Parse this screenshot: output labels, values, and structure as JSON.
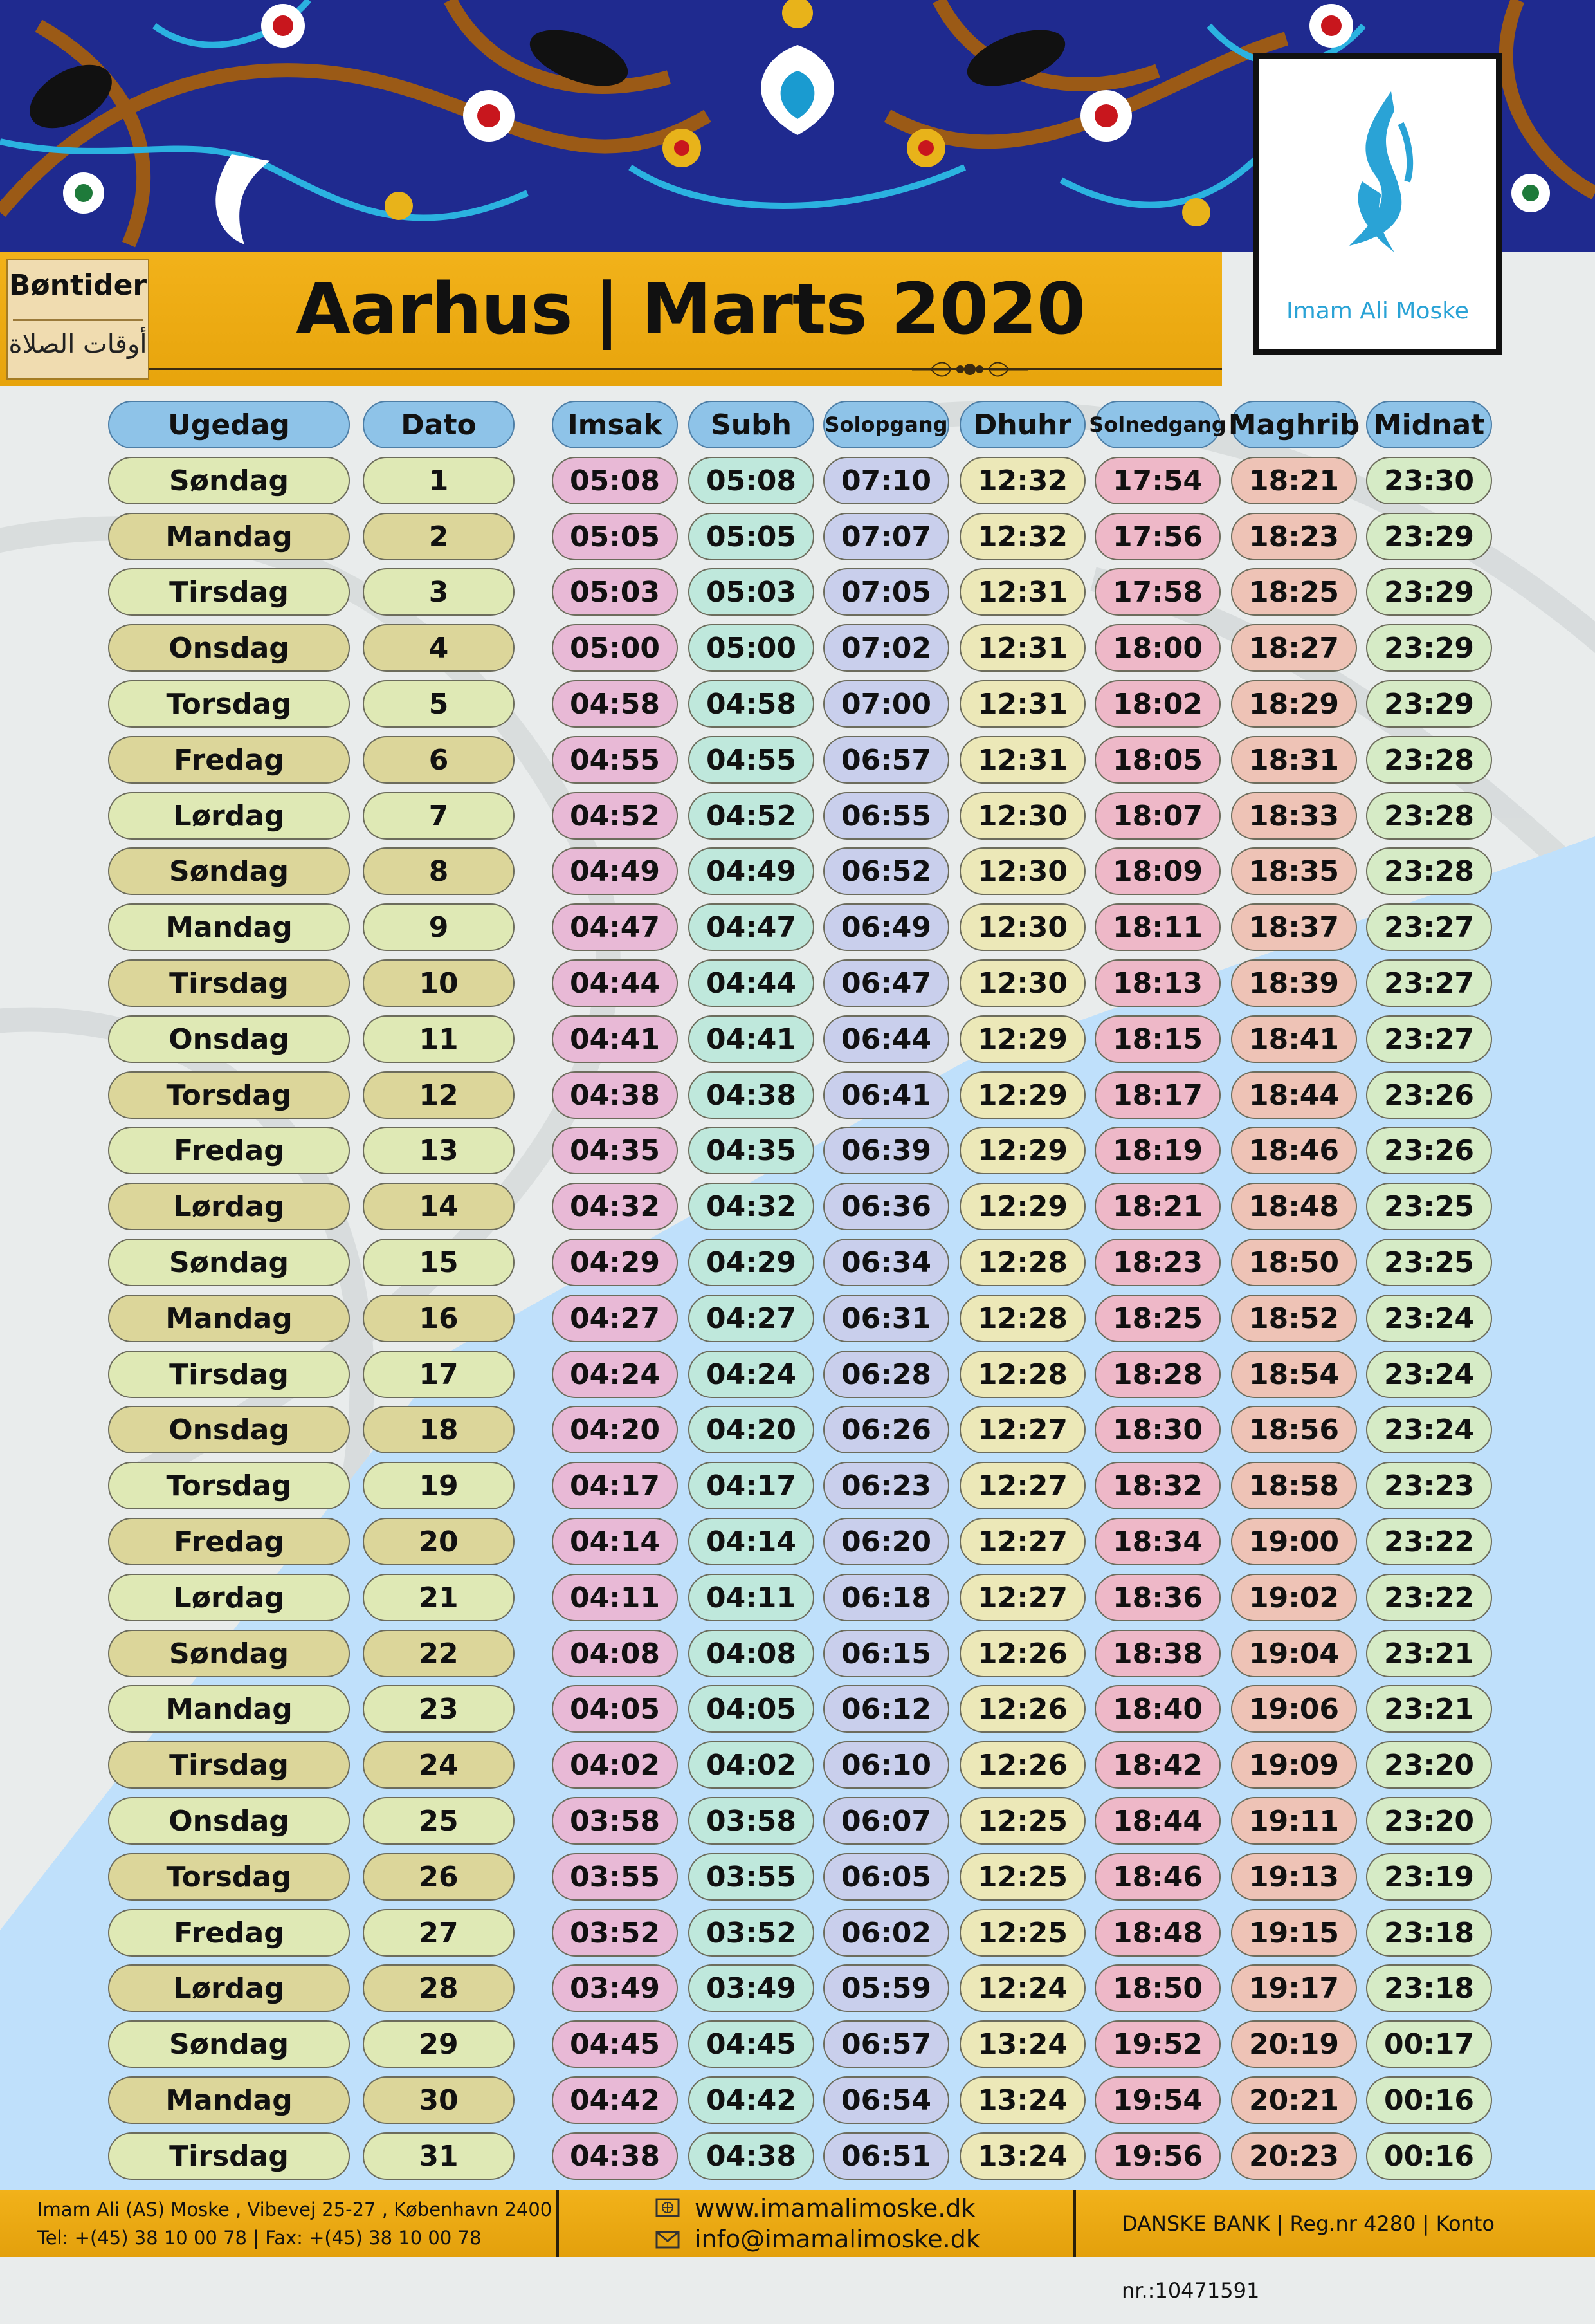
{
  "header": {
    "badge_top": "Bøntider",
    "badge_bottom": "أوقات الصلاة",
    "city": "Aarhus",
    "separator": "|",
    "month": "Marts 2020",
    "logo_name": "Imam Ali Moske"
  },
  "colors": {
    "dark_blue": "#1f2a8f",
    "gold": "#f2b21a",
    "header_pill": "#8ec3e8",
    "weekday_light": "#dfe9b5",
    "weekday_dark": "#dcd69a",
    "imsak": "#e8b9d6",
    "subh": "#bfe8dc",
    "solopgang": "#c9cfec",
    "dhuhr": "#ece8b8",
    "solnedgang": "#eeb8c8",
    "maghrib": "#eec3b6",
    "midnat": "#d6ebc6",
    "light_blue_wedge": "#bfe0fb"
  },
  "columns": [
    "Ugedag",
    "Dato",
    "Imsak",
    "Subh",
    "Solopgang",
    "Dhuhr",
    "Solnedgang",
    "Maghrib",
    "Midnat"
  ],
  "rows": [
    {
      "day": "Søndag",
      "date": "1",
      "times": [
        "05:08",
        "05:08",
        "07:10",
        "12:32",
        "17:54",
        "18:21",
        "23:30"
      ]
    },
    {
      "day": "Mandag",
      "date": "2",
      "times": [
        "05:05",
        "05:05",
        "07:07",
        "12:32",
        "17:56",
        "18:23",
        "23:29"
      ]
    },
    {
      "day": "Tirsdag",
      "date": "3",
      "times": [
        "05:03",
        "05:03",
        "07:05",
        "12:31",
        "17:58",
        "18:25",
        "23:29"
      ]
    },
    {
      "day": "Onsdag",
      "date": "4",
      "times": [
        "05:00",
        "05:00",
        "07:02",
        "12:31",
        "18:00",
        "18:27",
        "23:29"
      ]
    },
    {
      "day": "Torsdag",
      "date": "5",
      "times": [
        "04:58",
        "04:58",
        "07:00",
        "12:31",
        "18:02",
        "18:29",
        "23:29"
      ]
    },
    {
      "day": "Fredag",
      "date": "6",
      "times": [
        "04:55",
        "04:55",
        "06:57",
        "12:31",
        "18:05",
        "18:31",
        "23:28"
      ]
    },
    {
      "day": "Lørdag",
      "date": "7",
      "times": [
        "04:52",
        "04:52",
        "06:55",
        "12:30",
        "18:07",
        "18:33",
        "23:28"
      ]
    },
    {
      "day": "Søndag",
      "date": "8",
      "times": [
        "04:49",
        "04:49",
        "06:52",
        "12:30",
        "18:09",
        "18:35",
        "23:28"
      ]
    },
    {
      "day": "Mandag",
      "date": "9",
      "times": [
        "04:47",
        "04:47",
        "06:49",
        "12:30",
        "18:11",
        "18:37",
        "23:27"
      ]
    },
    {
      "day": "Tirsdag",
      "date": "10",
      "times": [
        "04:44",
        "04:44",
        "06:47",
        "12:30",
        "18:13",
        "18:39",
        "23:27"
      ]
    },
    {
      "day": "Onsdag",
      "date": "11",
      "times": [
        "04:41",
        "04:41",
        "06:44",
        "12:29",
        "18:15",
        "18:41",
        "23:27"
      ]
    },
    {
      "day": "Torsdag",
      "date": "12",
      "times": [
        "04:38",
        "04:38",
        "06:41",
        "12:29",
        "18:17",
        "18:44",
        "23:26"
      ]
    },
    {
      "day": "Fredag",
      "date": "13",
      "times": [
        "04:35",
        "04:35",
        "06:39",
        "12:29",
        "18:19",
        "18:46",
        "23:26"
      ]
    },
    {
      "day": "Lørdag",
      "date": "14",
      "times": [
        "04:32",
        "04:32",
        "06:36",
        "12:29",
        "18:21",
        "18:48",
        "23:25"
      ]
    },
    {
      "day": "Søndag",
      "date": "15",
      "times": [
        "04:29",
        "04:29",
        "06:34",
        "12:28",
        "18:23",
        "18:50",
        "23:25"
      ]
    },
    {
      "day": "Mandag",
      "date": "16",
      "times": [
        "04:27",
        "04:27",
        "06:31",
        "12:28",
        "18:25",
        "18:52",
        "23:24"
      ]
    },
    {
      "day": "Tirsdag",
      "date": "17",
      "times": [
        "04:24",
        "04:24",
        "06:28",
        "12:28",
        "18:28",
        "18:54",
        "23:24"
      ]
    },
    {
      "day": "Onsdag",
      "date": "18",
      "times": [
        "04:20",
        "04:20",
        "06:26",
        "12:27",
        "18:30",
        "18:56",
        "23:24"
      ]
    },
    {
      "day": "Torsdag",
      "date": "19",
      "times": [
        "04:17",
        "04:17",
        "06:23",
        "12:27",
        "18:32",
        "18:58",
        "23:23"
      ]
    },
    {
      "day": "Fredag",
      "date": "20",
      "times": [
        "04:14",
        "04:14",
        "06:20",
        "12:27",
        "18:34",
        "19:00",
        "23:22"
      ]
    },
    {
      "day": "Lørdag",
      "date": "21",
      "times": [
        "04:11",
        "04:11",
        "06:18",
        "12:27",
        "18:36",
        "19:02",
        "23:22"
      ]
    },
    {
      "day": "Søndag",
      "date": "22",
      "times": [
        "04:08",
        "04:08",
        "06:15",
        "12:26",
        "18:38",
        "19:04",
        "23:21"
      ]
    },
    {
      "day": "Mandag",
      "date": "23",
      "times": [
        "04:05",
        "04:05",
        "06:12",
        "12:26",
        "18:40",
        "19:06",
        "23:21"
      ]
    },
    {
      "day": "Tirsdag",
      "date": "24",
      "times": [
        "04:02",
        "04:02",
        "06:10",
        "12:26",
        "18:42",
        "19:09",
        "23:20"
      ]
    },
    {
      "day": "Onsdag",
      "date": "25",
      "times": [
        "03:58",
        "03:58",
        "06:07",
        "12:25",
        "18:44",
        "19:11",
        "23:20"
      ]
    },
    {
      "day": "Torsdag",
      "date": "26",
      "times": [
        "03:55",
        "03:55",
        "06:05",
        "12:25",
        "18:46",
        "19:13",
        "23:19"
      ]
    },
    {
      "day": "Fredag",
      "date": "27",
      "times": [
        "03:52",
        "03:52",
        "06:02",
        "12:25",
        "18:48",
        "19:15",
        "23:18"
      ]
    },
    {
      "day": "Lørdag",
      "date": "28",
      "times": [
        "03:49",
        "03:49",
        "05:59",
        "12:24",
        "18:50",
        "19:17",
        "23:18"
      ]
    },
    {
      "day": "Søndag",
      "date": "29",
      "times": [
        "04:45",
        "04:45",
        "06:57",
        "13:24",
        "19:52",
        "20:19",
        "00:17"
      ]
    },
    {
      "day": "Mandag",
      "date": "30",
      "times": [
        "04:42",
        "04:42",
        "06:54",
        "13:24",
        "19:54",
        "20:21",
        "00:16"
      ]
    },
    {
      "day": "Tirsdag",
      "date": "31",
      "times": [
        "04:38",
        "04:38",
        "06:51",
        "13:24",
        "19:56",
        "20:23",
        "00:16"
      ]
    }
  ],
  "footer": {
    "address": "Imam Ali (AS) Moske , Vibevej 25-27 , København 2400",
    "phone": "Tel: +(45) 38 10 00 78  |  Fax: +(45)  38 10 00 78",
    "website": "www.imamalimoske.dk",
    "email": "info@imamalimoske.dk",
    "bank": "DANSKE BANK | Reg.nr 4280 | Konto nr.:10471591",
    "web_icon": "globe-icon",
    "mail_icon": "envelope-icon"
  }
}
